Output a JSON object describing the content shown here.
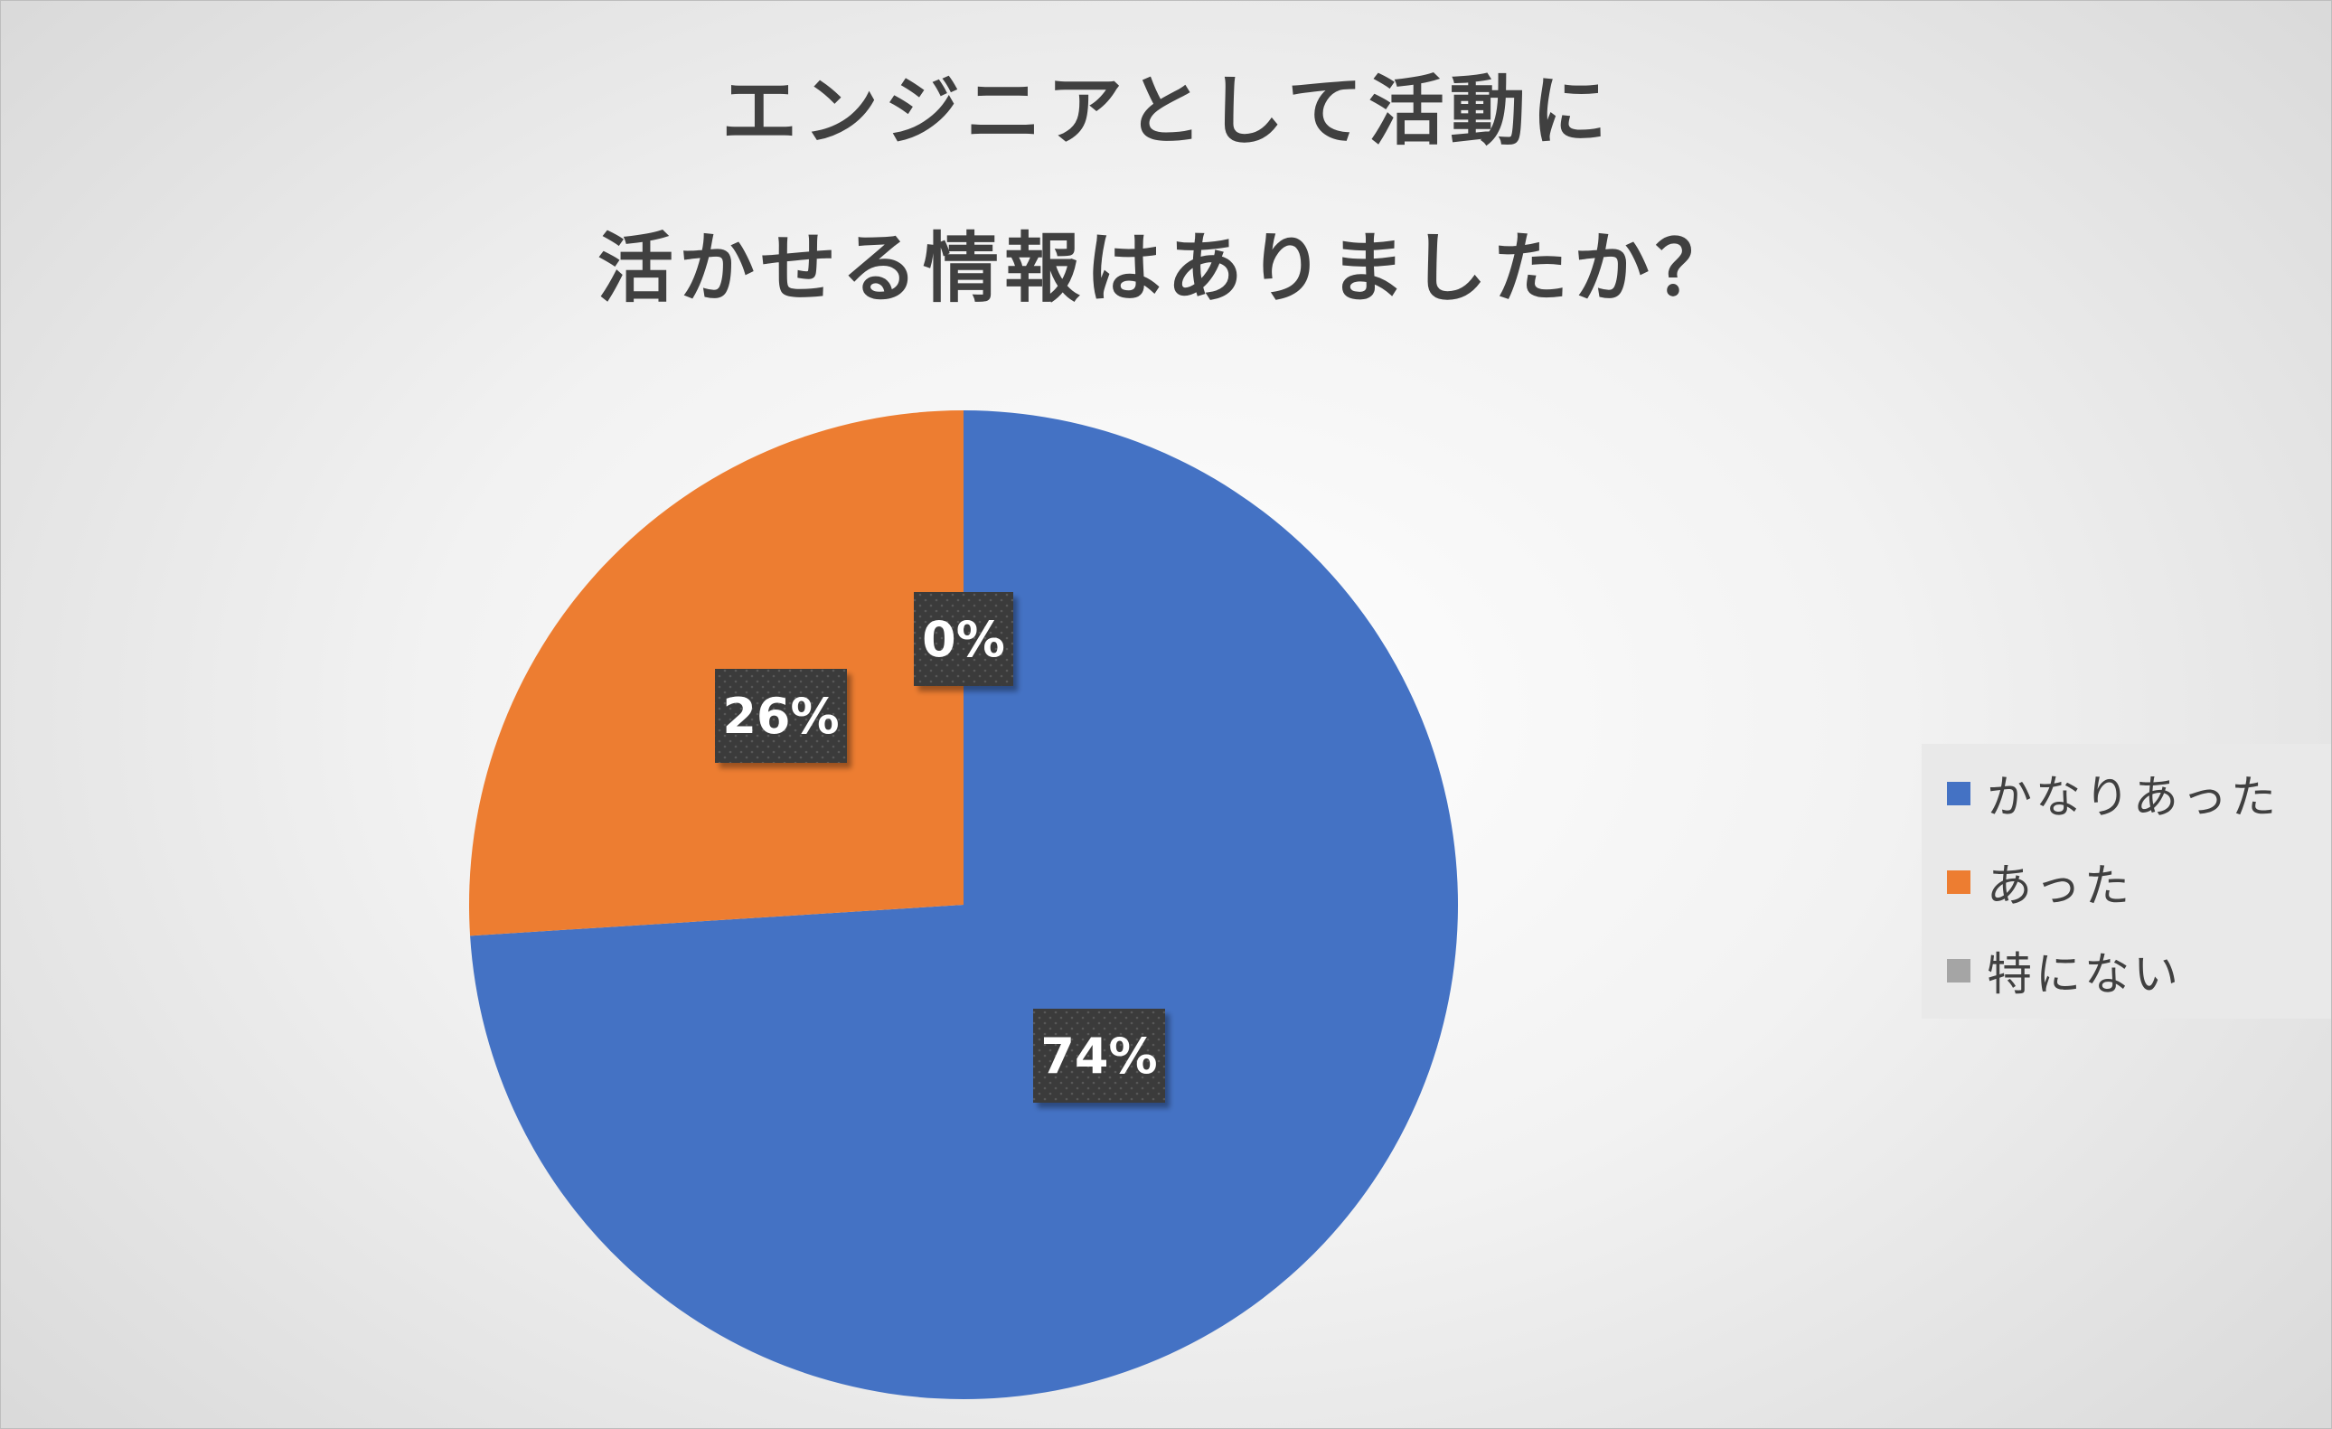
{
  "chart_data": {
    "type": "pie",
    "title": "エンジニアとして活動に 活かせる情報はありましたか？",
    "title_lines": [
      "エンジニアとして活動に",
      "活かせる情報はありましたか？"
    ],
    "categories": [
      "かなりあった",
      "あった",
      "特にない"
    ],
    "values": [
      74,
      26,
      0
    ],
    "unit": "%",
    "data_labels": [
      "74%",
      "26%",
      "0%"
    ],
    "colors": [
      "#4472c4",
      "#ed7d31",
      "#a5a5a5"
    ],
    "legend_position": "right",
    "start_angle": "12 o'clock, clockwise"
  }
}
